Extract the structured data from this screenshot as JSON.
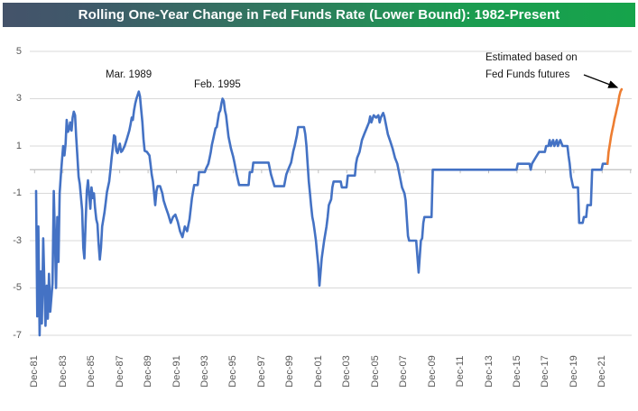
{
  "title": {
    "text": "Rolling One-Year Change in Fed Funds Rate (Lower Bound): 1982-Present"
  },
  "chart_data": {
    "type": "line",
    "title": "Rolling One-Year Change in Fed Funds Rate (Lower Bound): 1982-Present",
    "xlabel": "",
    "ylabel": "",
    "ylim": [
      -7,
      5
    ],
    "y_ticks": [
      5,
      3,
      1,
      -1,
      -3,
      -5,
      -7
    ],
    "x_labels": [
      "Dec-81",
      "Dec-83",
      "Dec-85",
      "Dec-87",
      "Dec-89",
      "Dec-91",
      "Dec-93",
      "Dec-95",
      "Dec-97",
      "Dec-99",
      "Dec-01",
      "Dec-03",
      "Dec-05",
      "Dec-07",
      "Dec-09",
      "Dec-11",
      "Dec-13",
      "Dec-15",
      "Dec-17",
      "Dec-19",
      "Dec-21"
    ],
    "grid": true,
    "legend": "none",
    "colors": {
      "actual": "#4472C4",
      "estimated": "#ED7D31",
      "gridline": "#D9D9D9",
      "axis": "#BFBFBF",
      "axis_text": "#595959",
      "title_bar_left": "#44536A",
      "title_bar_right": "#16A44B"
    },
    "annotations": [
      {
        "text": "Mar. 1989",
        "x": 1989.17,
        "y": 3.3
      },
      {
        "text": "Feb. 1995",
        "x": 1995.08,
        "y": 3.0
      },
      {
        "text": "Estimated based on",
        "text2": "Fed Funds futures",
        "points_to": "estimated-series"
      }
    ],
    "series": [
      {
        "name": "Actual (Fed Funds lower bound, rolling 1-yr change)",
        "color": "#4472C4",
        "points": [
          [
            1981.92,
            -0.9
          ],
          [
            1982.0,
            -6.2
          ],
          [
            1982.08,
            -2.4
          ],
          [
            1982.17,
            -7.0
          ],
          [
            1982.25,
            -4.3
          ],
          [
            1982.33,
            -6.5
          ],
          [
            1982.42,
            -2.9
          ],
          [
            1982.5,
            -4.7
          ],
          [
            1982.58,
            -6.6
          ],
          [
            1982.67,
            -4.9
          ],
          [
            1982.75,
            -6.3
          ],
          [
            1982.83,
            -4.4
          ],
          [
            1982.92,
            -6.0
          ],
          [
            1983.08,
            -4.8
          ],
          [
            1983.17,
            -0.9
          ],
          [
            1983.25,
            -2.9
          ],
          [
            1983.33,
            -5.0
          ],
          [
            1983.42,
            -2.0
          ],
          [
            1983.5,
            -3.9
          ],
          [
            1983.58,
            -1.0
          ],
          [
            1983.67,
            -0.2
          ],
          [
            1983.75,
            0.4
          ],
          [
            1983.83,
            1.0
          ],
          [
            1983.92,
            0.6
          ],
          [
            1984.0,
            1.1
          ],
          [
            1984.08,
            2.1
          ],
          [
            1984.17,
            1.6
          ],
          [
            1984.25,
            1.7
          ],
          [
            1984.33,
            2.0
          ],
          [
            1984.42,
            1.65
          ],
          [
            1984.5,
            2.2
          ],
          [
            1984.58,
            2.45
          ],
          [
            1984.67,
            2.3
          ],
          [
            1984.75,
            1.4
          ],
          [
            1984.83,
            0.6
          ],
          [
            1984.92,
            -0.3
          ],
          [
            1985.0,
            -0.6
          ],
          [
            1985.17,
            -1.7
          ],
          [
            1985.25,
            -3.3
          ],
          [
            1985.33,
            -3.75
          ],
          [
            1985.42,
            -2.2
          ],
          [
            1985.5,
            -0.9
          ],
          [
            1985.58,
            -0.45
          ],
          [
            1985.67,
            -1.1
          ],
          [
            1985.75,
            -1.65
          ],
          [
            1985.83,
            -0.75
          ],
          [
            1985.92,
            -1.2
          ],
          [
            1986.0,
            -1.0
          ],
          [
            1986.08,
            -1.6
          ],
          [
            1986.17,
            -2.1
          ],
          [
            1986.25,
            -2.3
          ],
          [
            1986.33,
            -3.1
          ],
          [
            1986.42,
            -3.8
          ],
          [
            1986.5,
            -3.3
          ],
          [
            1986.58,
            -2.4
          ],
          [
            1986.75,
            -1.8
          ],
          [
            1986.83,
            -1.4
          ],
          [
            1986.92,
            -0.95
          ],
          [
            1987.08,
            -0.5
          ],
          [
            1987.17,
            0.0
          ],
          [
            1987.25,
            0.5
          ],
          [
            1987.33,
            0.9
          ],
          [
            1987.42,
            1.45
          ],
          [
            1987.5,
            1.4
          ],
          [
            1987.58,
            0.8
          ],
          [
            1987.67,
            0.7
          ],
          [
            1987.75,
            0.9
          ],
          [
            1987.83,
            1.1
          ],
          [
            1987.92,
            0.75
          ],
          [
            1988.0,
            0.8
          ],
          [
            1988.17,
            1.0
          ],
          [
            1988.33,
            1.3
          ],
          [
            1988.5,
            1.65
          ],
          [
            1988.58,
            1.9
          ],
          [
            1988.67,
            2.2
          ],
          [
            1988.75,
            2.1
          ],
          [
            1988.83,
            2.5
          ],
          [
            1988.92,
            2.8
          ],
          [
            1989.0,
            3.0
          ],
          [
            1989.17,
            3.3
          ],
          [
            1989.25,
            3.1
          ],
          [
            1989.33,
            2.6
          ],
          [
            1989.42,
            2.0
          ],
          [
            1989.5,
            1.3
          ],
          [
            1989.58,
            0.8
          ],
          [
            1989.75,
            0.75
          ],
          [
            1989.92,
            0.6
          ],
          [
            1990.0,
            0.2
          ],
          [
            1990.08,
            -0.2
          ],
          [
            1990.17,
            -0.5
          ],
          [
            1990.25,
            -1.0
          ],
          [
            1990.33,
            -1.5
          ],
          [
            1990.42,
            -0.9
          ],
          [
            1990.5,
            -0.7
          ],
          [
            1990.67,
            -0.7
          ],
          [
            1990.83,
            -1.0
          ],
          [
            1990.92,
            -1.3
          ],
          [
            1991.08,
            -1.6
          ],
          [
            1991.25,
            -1.9
          ],
          [
            1991.42,
            -2.25
          ],
          [
            1991.58,
            -2.0
          ],
          [
            1991.75,
            -1.9
          ],
          [
            1991.92,
            -2.2
          ],
          [
            1992.08,
            -2.6
          ],
          [
            1992.25,
            -2.85
          ],
          [
            1992.42,
            -2.4
          ],
          [
            1992.58,
            -2.6
          ],
          [
            1992.75,
            -2.1
          ],
          [
            1992.92,
            -1.2
          ],
          [
            1993.08,
            -0.65
          ],
          [
            1993.33,
            -0.65
          ],
          [
            1993.42,
            -0.1
          ],
          [
            1993.83,
            -0.1
          ],
          [
            1993.92,
            0.05
          ],
          [
            1994.08,
            0.25
          ],
          [
            1994.17,
            0.5
          ],
          [
            1994.25,
            0.75
          ],
          [
            1994.33,
            1.05
          ],
          [
            1994.42,
            1.3
          ],
          [
            1994.58,
            1.75
          ],
          [
            1994.67,
            1.8
          ],
          [
            1994.83,
            2.4
          ],
          [
            1994.92,
            2.5
          ],
          [
            1995.0,
            2.8
          ],
          [
            1995.08,
            3.0
          ],
          [
            1995.17,
            2.9
          ],
          [
            1995.25,
            2.5
          ],
          [
            1995.33,
            2.3
          ],
          [
            1995.5,
            1.4
          ],
          [
            1995.67,
            0.9
          ],
          [
            1995.83,
            0.55
          ],
          [
            1995.92,
            0.3
          ],
          [
            1996.08,
            -0.2
          ],
          [
            1996.25,
            -0.65
          ],
          [
            1996.92,
            -0.65
          ],
          [
            1997.0,
            -0.1
          ],
          [
            1997.17,
            -0.1
          ],
          [
            1997.25,
            0.3
          ],
          [
            1998.33,
            0.3
          ],
          [
            1998.5,
            -0.2
          ],
          [
            1998.75,
            -0.7
          ],
          [
            1999.42,
            -0.7
          ],
          [
            1999.58,
            -0.2
          ],
          [
            1999.75,
            0.05
          ],
          [
            1999.92,
            0.3
          ],
          [
            2000.08,
            0.8
          ],
          [
            2000.17,
            1.0
          ],
          [
            2000.33,
            1.45
          ],
          [
            2000.42,
            1.8
          ],
          [
            2000.83,
            1.8
          ],
          [
            2000.92,
            1.5
          ],
          [
            2001.0,
            1.0
          ],
          [
            2001.08,
            0.3
          ],
          [
            2001.17,
            -0.5
          ],
          [
            2001.25,
            -1.0
          ],
          [
            2001.33,
            -1.5
          ],
          [
            2001.42,
            -2.0
          ],
          [
            2001.5,
            -2.25
          ],
          [
            2001.58,
            -2.6
          ],
          [
            2001.67,
            -3.0
          ],
          [
            2001.75,
            -3.5
          ],
          [
            2001.83,
            -4.0
          ],
          [
            2001.92,
            -4.9
          ],
          [
            2002.08,
            -3.75
          ],
          [
            2002.25,
            -3.0
          ],
          [
            2002.42,
            -2.4
          ],
          [
            2002.5,
            -2.0
          ],
          [
            2002.58,
            -1.5
          ],
          [
            2002.75,
            -1.25
          ],
          [
            2002.83,
            -0.75
          ],
          [
            2002.92,
            -0.5
          ],
          [
            2003.42,
            -0.5
          ],
          [
            2003.5,
            -0.75
          ],
          [
            2003.83,
            -0.75
          ],
          [
            2003.92,
            -0.25
          ],
          [
            2004.42,
            -0.25
          ],
          [
            2004.5,
            0.25
          ],
          [
            2004.58,
            0.5
          ],
          [
            2004.75,
            0.75
          ],
          [
            2004.92,
            1.25
          ],
          [
            2005.08,
            1.5
          ],
          [
            2005.25,
            1.75
          ],
          [
            2005.42,
            2.0
          ],
          [
            2005.5,
            2.25
          ],
          [
            2005.58,
            2.0
          ],
          [
            2005.75,
            2.3
          ],
          [
            2005.92,
            2.2
          ],
          [
            2006.08,
            2.3
          ],
          [
            2006.17,
            2.0
          ],
          [
            2006.25,
            2.2
          ],
          [
            2006.42,
            2.4
          ],
          [
            2006.5,
            2.25
          ],
          [
            2006.58,
            2.0
          ],
          [
            2006.75,
            1.5
          ],
          [
            2006.92,
            1.2
          ],
          [
            2007.08,
            0.9
          ],
          [
            2007.25,
            0.5
          ],
          [
            2007.42,
            0.25
          ],
          [
            2007.5,
            0.0
          ],
          [
            2007.58,
            -0.25
          ],
          [
            2007.75,
            -0.75
          ],
          [
            2007.92,
            -1.0
          ],
          [
            2008.0,
            -1.3
          ],
          [
            2008.08,
            -2.0
          ],
          [
            2008.17,
            -2.8
          ],
          [
            2008.25,
            -3.0
          ],
          [
            2008.75,
            -3.0
          ],
          [
            2008.92,
            -4.35
          ],
          [
            2009.08,
            -3.0
          ],
          [
            2009.17,
            -2.9
          ],
          [
            2009.25,
            -2.25
          ],
          [
            2009.33,
            -2.0
          ],
          [
            2009.83,
            -2.0
          ],
          [
            2009.92,
            0.0
          ],
          [
            2015.83,
            0.0
          ],
          [
            2015.92,
            0.25
          ],
          [
            2016.75,
            0.25
          ],
          [
            2016.83,
            0.0
          ],
          [
            2016.92,
            0.25
          ],
          [
            2017.17,
            0.5
          ],
          [
            2017.42,
            0.75
          ],
          [
            2017.83,
            0.75
          ],
          [
            2017.92,
            1.0
          ],
          [
            2018.08,
            1.0
          ],
          [
            2018.17,
            1.25
          ],
          [
            2018.25,
            1.0
          ],
          [
            2018.42,
            1.25
          ],
          [
            2018.5,
            1.0
          ],
          [
            2018.67,
            1.25
          ],
          [
            2018.75,
            1.0
          ],
          [
            2018.92,
            1.25
          ],
          [
            2019.08,
            1.0
          ],
          [
            2019.42,
            1.0
          ],
          [
            2019.5,
            0.6
          ],
          [
            2019.58,
            0.25
          ],
          [
            2019.67,
            -0.3
          ],
          [
            2019.83,
            -0.75
          ],
          [
            2020.17,
            -0.75
          ],
          [
            2020.25,
            -2.25
          ],
          [
            2020.5,
            -2.25
          ],
          [
            2020.58,
            -2.0
          ],
          [
            2020.75,
            -2.0
          ],
          [
            2020.83,
            -1.5
          ],
          [
            2021.08,
            -1.5
          ],
          [
            2021.17,
            0.0
          ],
          [
            2021.83,
            0.0
          ],
          [
            2021.92,
            0.25
          ],
          [
            2022.25,
            0.25
          ]
        ]
      },
      {
        "name": "Estimated based on Fed Funds futures",
        "color": "#ED7D31",
        "points": [
          [
            2022.25,
            0.25
          ],
          [
            2022.33,
            0.75
          ],
          [
            2022.42,
            1.1
          ],
          [
            2022.5,
            1.4
          ],
          [
            2022.58,
            1.65
          ],
          [
            2022.67,
            1.9
          ],
          [
            2022.75,
            2.15
          ],
          [
            2022.83,
            2.35
          ],
          [
            2022.92,
            2.6
          ],
          [
            2023.0,
            2.8
          ],
          [
            2023.08,
            3.1
          ],
          [
            2023.17,
            3.3
          ],
          [
            2023.25,
            3.4
          ]
        ]
      }
    ]
  }
}
